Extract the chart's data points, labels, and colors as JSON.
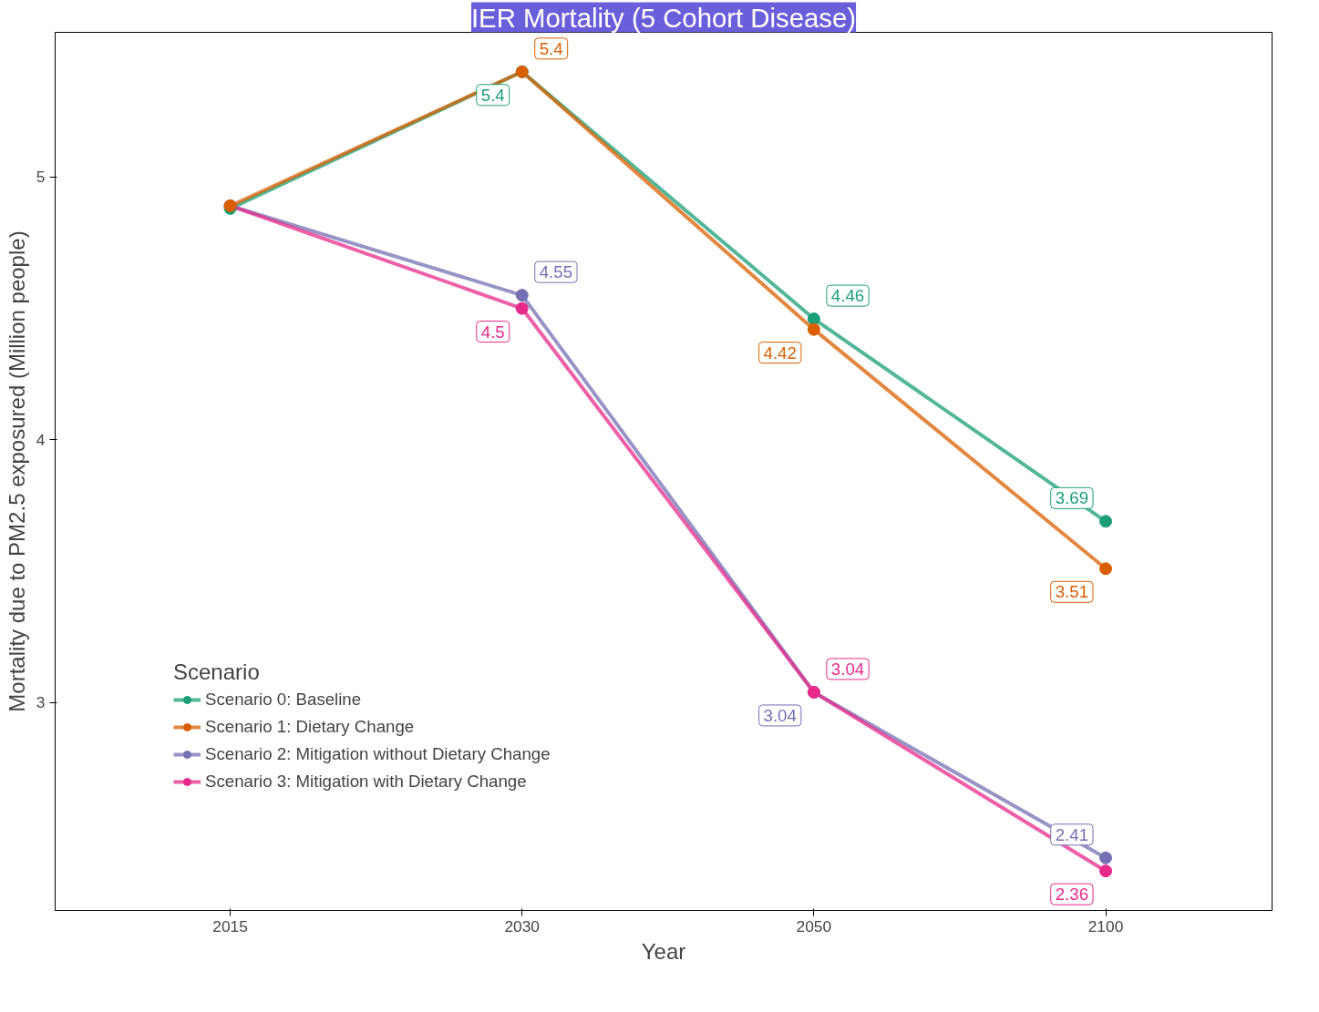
{
  "chart_data": {
    "type": "line",
    "title": "IER Mortality (5 Cohort Disease)",
    "xlabel": "Year",
    "ylabel": "Mortality due to PM2.5 exposured (Million people)",
    "legend_title": "Scenario",
    "categories": [
      "2015",
      "2030",
      "2050",
      "2100"
    ],
    "series": [
      {
        "name": "Scenario 0: Baseline",
        "color": "#1b9e77",
        "values": [
          4.88,
          5.4,
          4.46,
          3.69
        ],
        "value_labels": [
          null,
          "5.4",
          "4.46",
          "3.69"
        ]
      },
      {
        "name": "Scenario 1: Dietary Change",
        "color": "#d95f02",
        "values": [
          4.89,
          5.4,
          4.42,
          3.51
        ],
        "value_labels": [
          null,
          "5.4",
          "4.42",
          "3.51"
        ]
      },
      {
        "name": "Scenario 2: Mitigation without Dietary Change",
        "color": "#7570b3",
        "values": [
          4.89,
          4.55,
          3.04,
          2.41
        ],
        "value_labels": [
          null,
          "4.55",
          "3.04",
          "2.41"
        ]
      },
      {
        "name": "Scenario 3: Mitigation with Dietary Change",
        "color": "#e7298a",
        "values": [
          4.89,
          4.5,
          3.04,
          2.36
        ],
        "value_labels": [
          null,
          "4.5",
          "3.04",
          "2.36"
        ]
      }
    ],
    "ylim": [
      2.21,
      5.55
    ],
    "yticks": [
      3,
      4,
      5
    ],
    "grid": false,
    "legend": "bottom left",
    "marker": "circle",
    "line_style": "solid"
  }
}
